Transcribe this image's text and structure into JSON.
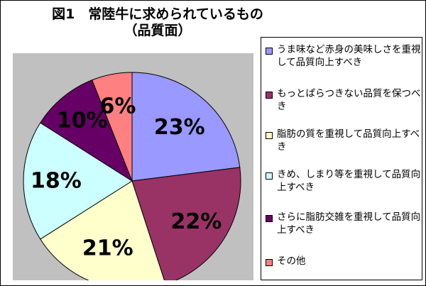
{
  "title": {
    "line1": "図1　常陸牛に求められているもの",
    "line2": "（品質面）"
  },
  "chart_data": {
    "type": "pie",
    "title": "図1　常陸牛に求められているもの（品質面）",
    "legend_position": "right",
    "slices": [
      {
        "label": "うま味など赤身の美味しさを重視して品質向上すべき",
        "value": 23,
        "display": "23%",
        "color": "#9999ff"
      },
      {
        "label": "もっとぱらつきない品質を保つべき",
        "value": 22,
        "display": "22%",
        "color": "#993366"
      },
      {
        "label": "脂肪の質を重視して品質向上すべき",
        "value": 21,
        "display": "21%",
        "color": "#ffffcc"
      },
      {
        "label": "きめ、しまり等を重視して品質向上すべき",
        "value": 18,
        "display": "18%",
        "color": "#ccffff"
      },
      {
        "label": "さらに脂肪交雑を重視して品質向上すべき",
        "value": 10,
        "display": "10%",
        "color": "#660066"
      },
      {
        "label": "その他",
        "value": 6,
        "display": "6%",
        "color": "#ff8080"
      }
    ]
  },
  "legend": {
    "items": [
      {
        "label": "うま味など赤身の美味しさを重視して品質向上すべき",
        "color": "#9999ff"
      },
      {
        "label": "もっとぱらつきない品質を保つべき",
        "color": "#993366"
      },
      {
        "label": "脂肪の質を重視して品質向上すべき",
        "color": "#ffffcc"
      },
      {
        "label": "きめ、しまり等を重視して品質向上すべき",
        "color": "#ccffff"
      },
      {
        "label": "さらに脂肪交雑を重視して品質向上すべき",
        "color": "#660066"
      },
      {
        "label": "その他",
        "color": "#ff8080"
      }
    ]
  },
  "colors": {
    "plot_background": "#c0c0c0",
    "outline": "#000000"
  }
}
